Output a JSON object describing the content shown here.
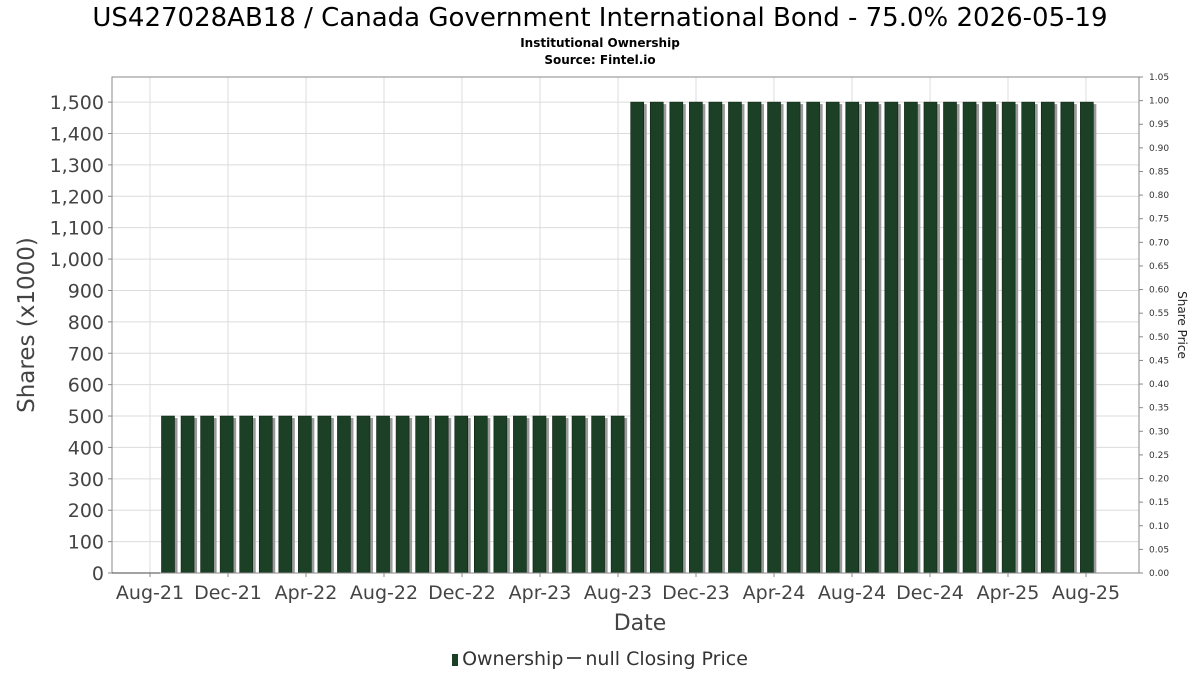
{
  "chart_data": {
    "type": "bar",
    "title": "US427028AB18 / Canada Government International Bond - 75.0% 2026-05-19",
    "subtitle": "Institutional Ownership",
    "source": "Source: Fintel.io",
    "xlabel": "Date",
    "ylabel": "Shares (x1000)",
    "y2label": "Share Price",
    "ylim": [
      0,
      1580
    ],
    "y2lim": [
      0,
      1.05
    ],
    "y_ticks": [
      "0",
      "100",
      "200",
      "300",
      "400",
      "500",
      "600",
      "700",
      "800",
      "900",
      "1,000",
      "1,100",
      "1,200",
      "1,300",
      "1,400",
      "1,500"
    ],
    "y_tick_values": [
      0,
      100,
      200,
      300,
      400,
      500,
      600,
      700,
      800,
      900,
      1000,
      1100,
      1200,
      1300,
      1400,
      1500
    ],
    "y2_ticks": [
      "0.00",
      "0.05",
      "0.10",
      "0.15",
      "0.20",
      "0.25",
      "0.30",
      "0.35",
      "0.40",
      "0.45",
      "0.50",
      "0.55",
      "0.60",
      "0.65",
      "0.70",
      "0.75",
      "0.80",
      "0.85",
      "0.90",
      "0.95",
      "1.00",
      "1.05"
    ],
    "y2_tick_values": [
      0,
      0.05,
      0.1,
      0.15,
      0.2,
      0.25,
      0.3,
      0.35,
      0.4,
      0.45,
      0.5,
      0.55,
      0.6,
      0.65,
      0.7,
      0.75,
      0.8,
      0.85,
      0.9,
      0.95,
      1.0,
      1.05
    ],
    "x_ticks": [
      "Aug-21",
      "Dec-21",
      "Apr-22",
      "Aug-22",
      "Dec-22",
      "Apr-23",
      "Aug-23",
      "Dec-23",
      "Apr-24",
      "Aug-24",
      "Dec-24",
      "Apr-25",
      "Aug-25"
    ],
    "grid": true,
    "legend_position": "bottom",
    "series": [
      {
        "name": "Ownership",
        "color": "#1b4025",
        "values": [
          500,
          500,
          500,
          500,
          500,
          500,
          500,
          500,
          500,
          500,
          500,
          500,
          500,
          500,
          500,
          500,
          500,
          500,
          500,
          500,
          500,
          500,
          500,
          500,
          1500,
          1500,
          1500,
          1500,
          1500,
          1500,
          1500,
          1500,
          1500,
          1500,
          1500,
          1500,
          1500,
          1500,
          1500,
          1500,
          1500,
          1500,
          1500,
          1500,
          1500,
          1500,
          1500,
          1500
        ]
      }
    ],
    "legend": {
      "ownership_label": "Ownership",
      "price_label": "null Closing Price"
    }
  }
}
